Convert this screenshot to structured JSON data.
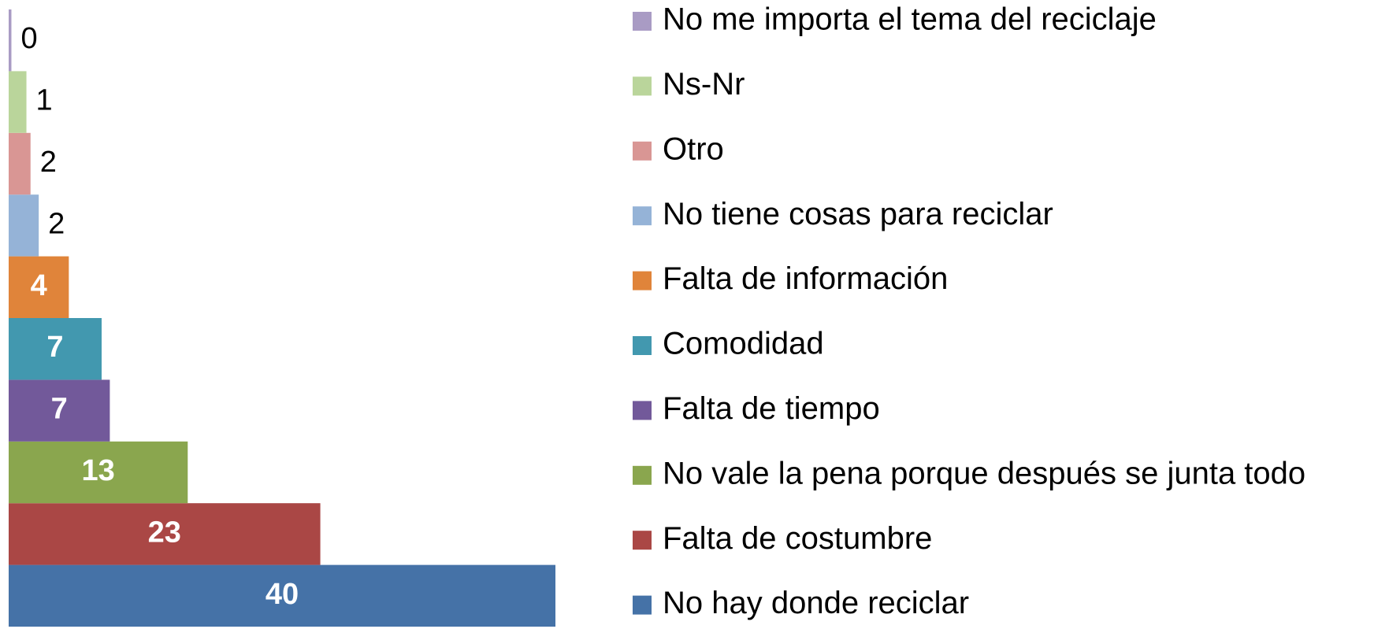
{
  "chart_data": {
    "type": "bar",
    "orientation": "horizontal",
    "categories": [
      "No hay donde reciclar",
      "Falta de costumbre",
      "No vale la pena porque después se junta todo",
      "Falta de tiempo",
      "Comodidad",
      "Falta de información",
      "No tiene cosas para reciclar",
      "Otro",
      "Ns-Nr",
      "No me importa el tema del reciclaje"
    ],
    "values": [
      40,
      22.8,
      13.1,
      7.4,
      6.8,
      4.4,
      2.2,
      1.6,
      1.3,
      0.2
    ],
    "value_labels": [
      "40",
      "23",
      "13",
      "7",
      "7",
      "4",
      "2",
      "2",
      "1",
      "0"
    ],
    "colors": [
      "#4572a7",
      "#aa4745",
      "#8aa64e",
      "#72599a",
      "#4298af",
      "#e0843a",
      "#95b3d7",
      "#d99694",
      "#bad59b",
      "#a99bc4"
    ],
    "xlim": [
      0,
      40
    ],
    "legend": "right"
  }
}
